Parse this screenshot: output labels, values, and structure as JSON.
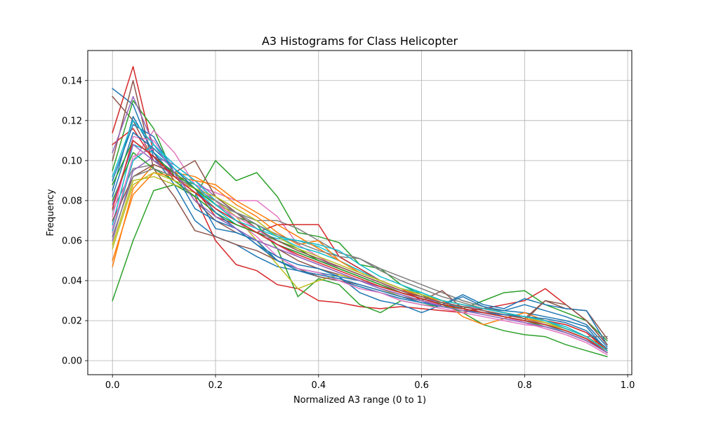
{
  "chart_data": {
    "type": "line",
    "title": "A3 Histograms for Class Helicopter",
    "xlabel": "Normalized A3 range (0 to 1)",
    "ylabel": "Frequency",
    "xlim": [
      -0.048,
      1.008
    ],
    "ylim": [
      -0.007,
      0.155
    ],
    "xticks": [
      0.0,
      0.2,
      0.4,
      0.6,
      0.8,
      1.0
    ],
    "xtick_labels": [
      "0.0",
      "0.2",
      "0.4",
      "0.6",
      "0.8",
      "1.0"
    ],
    "yticks": [
      0.0,
      0.02,
      0.04,
      0.06,
      0.08,
      0.1,
      0.12,
      0.14
    ],
    "ytick_labels": [
      "0.00",
      "0.02",
      "0.04",
      "0.06",
      "0.08",
      "0.10",
      "0.12",
      "0.14"
    ],
    "grid": true,
    "x": [
      0.0,
      0.04,
      0.08,
      0.12,
      0.16,
      0.2,
      0.24,
      0.28,
      0.32,
      0.36,
      0.4,
      0.44,
      0.48,
      0.52,
      0.56,
      0.6,
      0.64,
      0.68,
      0.72,
      0.76,
      0.8,
      0.84,
      0.88,
      0.92,
      0.96
    ],
    "series": [
      {
        "color": "#1f77b4",
        "values": [
          0.136,
          0.128,
          0.102,
          0.088,
          0.07,
          0.062,
          0.058,
          0.052,
          0.047,
          0.045,
          0.042,
          0.04,
          0.037,
          0.034,
          0.031,
          0.029,
          0.028,
          0.027,
          0.026,
          0.025,
          0.024,
          0.022,
          0.02,
          0.017,
          0.005
        ]
      },
      {
        "color": "#d62728",
        "values": [
          0.114,
          0.147,
          0.104,
          0.09,
          0.082,
          0.06,
          0.048,
          0.045,
          0.038,
          0.036,
          0.03,
          0.029,
          0.027,
          0.026,
          0.027,
          0.026,
          0.025,
          0.024,
          0.026,
          0.028,
          0.03,
          0.036,
          0.028,
          0.02,
          0.008
        ]
      },
      {
        "color": "#8c564b",
        "values": [
          0.132,
          0.12,
          0.1,
          0.094,
          0.08,
          0.07,
          0.064,
          0.06,
          0.056,
          0.05,
          0.046,
          0.043,
          0.04,
          0.037,
          0.034,
          0.032,
          0.03,
          0.028,
          0.026,
          0.024,
          0.022,
          0.02,
          0.018,
          0.014,
          0.006
        ]
      },
      {
        "color": "#2ca02c",
        "values": [
          0.03,
          0.06,
          0.085,
          0.088,
          0.082,
          0.1,
          0.09,
          0.094,
          0.082,
          0.064,
          0.062,
          0.059,
          0.048,
          0.046,
          0.038,
          0.033,
          0.028,
          0.024,
          0.018,
          0.015,
          0.013,
          0.012,
          0.008,
          0.005,
          0.002
        ]
      },
      {
        "color": "#2ca02c",
        "values": [
          0.095,
          0.13,
          0.116,
          0.092,
          0.088,
          0.078,
          0.072,
          0.068,
          0.056,
          0.032,
          0.041,
          0.038,
          0.028,
          0.024,
          0.03,
          0.028,
          0.027,
          0.026,
          0.03,
          0.034,
          0.035,
          0.028,
          0.024,
          0.02,
          0.01
        ]
      },
      {
        "color": "#e377c2",
        "values": [
          0.064,
          0.1,
          0.115,
          0.104,
          0.088,
          0.084,
          0.08,
          0.08,
          0.072,
          0.058,
          0.052,
          0.046,
          0.042,
          0.038,
          0.035,
          0.032,
          0.03,
          0.028,
          0.025,
          0.022,
          0.019,
          0.017,
          0.014,
          0.01,
          0.004
        ]
      },
      {
        "color": "#7f7f7f",
        "values": [
          0.075,
          0.096,
          0.098,
          0.094,
          0.086,
          0.078,
          0.074,
          0.07,
          0.07,
          0.066,
          0.06,
          0.054,
          0.051,
          0.046,
          0.042,
          0.038,
          0.034,
          0.03,
          0.027,
          0.024,
          0.021,
          0.018,
          0.015,
          0.011,
          0.005
        ]
      },
      {
        "color": "#bcbd22",
        "values": [
          0.058,
          0.09,
          0.092,
          0.088,
          0.084,
          0.08,
          0.072,
          0.06,
          0.048,
          0.036,
          0.04,
          0.043,
          0.04,
          0.036,
          0.032,
          0.03,
          0.028,
          0.026,
          0.024,
          0.022,
          0.02,
          0.018,
          0.016,
          0.012,
          0.005
        ]
      },
      {
        "color": "#17becf",
        "values": [
          0.068,
          0.108,
          0.104,
          0.096,
          0.086,
          0.076,
          0.068,
          0.064,
          0.061,
          0.06,
          0.057,
          0.052,
          0.046,
          0.04,
          0.036,
          0.034,
          0.03,
          0.026,
          0.024,
          0.022,
          0.02,
          0.018,
          0.014,
          0.01,
          0.004
        ]
      },
      {
        "color": "#ff7f0e",
        "values": [
          0.047,
          0.086,
          0.098,
          0.094,
          0.092,
          0.086,
          0.078,
          0.072,
          0.064,
          0.058,
          0.06,
          0.05,
          0.044,
          0.04,
          0.036,
          0.032,
          0.03,
          0.022,
          0.018,
          0.021,
          0.024,
          0.02,
          0.016,
          0.012,
          0.006
        ]
      },
      {
        "color": "#9467bd",
        "values": [
          0.06,
          0.095,
          0.102,
          0.098,
          0.09,
          0.082,
          0.074,
          0.066,
          0.058,
          0.052,
          0.048,
          0.044,
          0.04,
          0.037,
          0.034,
          0.031,
          0.029,
          0.027,
          0.025,
          0.023,
          0.021,
          0.019,
          0.016,
          0.012,
          0.005
        ]
      },
      {
        "color": "#8c564b",
        "values": [
          0.1,
          0.14,
          0.096,
          0.082,
          0.065,
          0.062,
          0.058,
          0.055,
          0.05,
          0.046,
          0.042,
          0.04,
          0.038,
          0.035,
          0.032,
          0.03,
          0.035,
          0.026,
          0.024,
          0.022,
          0.02,
          0.03,
          0.026,
          0.025,
          0.011
        ]
      },
      {
        "color": "#1f77b4",
        "values": [
          0.085,
          0.122,
          0.104,
          0.092,
          0.084,
          0.066,
          0.064,
          0.06,
          0.05,
          0.046,
          0.044,
          0.042,
          0.034,
          0.03,
          0.028,
          0.024,
          0.028,
          0.033,
          0.028,
          0.026,
          0.031,
          0.028,
          0.026,
          0.025,
          0.008
        ]
      },
      {
        "color": "#e377c2",
        "values": [
          0.072,
          0.112,
          0.11,
          0.096,
          0.088,
          0.08,
          0.07,
          0.062,
          0.052,
          0.046,
          0.044,
          0.04,
          0.036,
          0.034,
          0.03,
          0.028,
          0.026,
          0.024,
          0.022,
          0.02,
          0.018,
          0.017,
          0.014,
          0.01,
          0.004
        ]
      },
      {
        "color": "#d62728",
        "values": [
          0.108,
          0.116,
          0.1,
          0.092,
          0.086,
          0.072,
          0.068,
          0.064,
          0.068,
          0.068,
          0.068,
          0.052,
          0.046,
          0.04,
          0.036,
          0.03,
          0.027,
          0.025,
          0.026,
          0.024,
          0.022,
          0.02,
          0.018,
          0.014,
          0.005
        ]
      },
      {
        "color": "#2ca02c",
        "values": [
          0.08,
          0.104,
          0.096,
          0.09,
          0.082,
          0.074,
          0.068,
          0.064,
          0.06,
          0.056,
          0.05,
          0.046,
          0.042,
          0.038,
          0.034,
          0.031,
          0.028,
          0.026,
          0.024,
          0.022,
          0.02,
          0.017,
          0.014,
          0.01,
          0.004
        ]
      },
      {
        "color": "#1f77b4",
        "values": [
          0.09,
          0.118,
          0.112,
          0.094,
          0.076,
          0.07,
          0.066,
          0.058,
          0.052,
          0.048,
          0.046,
          0.042,
          0.04,
          0.036,
          0.033,
          0.03,
          0.028,
          0.032,
          0.027,
          0.025,
          0.028,
          0.025,
          0.022,
          0.018,
          0.007
        ]
      },
      {
        "color": "#17becf",
        "values": [
          0.065,
          0.1,
          0.108,
          0.098,
          0.09,
          0.08,
          0.074,
          0.068,
          0.062,
          0.057,
          0.054,
          0.05,
          0.045,
          0.04,
          0.036,
          0.033,
          0.03,
          0.028,
          0.026,
          0.024,
          0.022,
          0.02,
          0.017,
          0.012,
          0.005
        ]
      },
      {
        "color": "#ff7f0e",
        "values": [
          0.05,
          0.083,
          0.094,
          0.092,
          0.09,
          0.088,
          0.08,
          0.074,
          0.068,
          0.062,
          0.056,
          0.05,
          0.044,
          0.04,
          0.036,
          0.032,
          0.029,
          0.027,
          0.025,
          0.023,
          0.021,
          0.019,
          0.016,
          0.012,
          0.005
        ]
      },
      {
        "color": "#9467bd",
        "values": [
          0.078,
          0.108,
          0.1,
          0.092,
          0.084,
          0.076,
          0.07,
          0.064,
          0.058,
          0.054,
          0.05,
          0.047,
          0.043,
          0.039,
          0.035,
          0.032,
          0.029,
          0.027,
          0.025,
          0.022,
          0.02,
          0.018,
          0.015,
          0.011,
          0.004
        ]
      },
      {
        "color": "#8c564b",
        "values": [
          0.07,
          0.092,
          0.098,
          0.094,
          0.1,
          0.082,
          0.074,
          0.066,
          0.06,
          0.055,
          0.051,
          0.047,
          0.043,
          0.039,
          0.035,
          0.032,
          0.029,
          0.027,
          0.025,
          0.023,
          0.021,
          0.03,
          0.028,
          0.02,
          0.008
        ]
      },
      {
        "color": "#7f7f7f",
        "values": [
          0.062,
          0.092,
          0.096,
          0.092,
          0.086,
          0.08,
          0.074,
          0.068,
          0.063,
          0.059,
          0.055,
          0.052,
          0.051,
          0.045,
          0.04,
          0.036,
          0.032,
          0.029,
          0.026,
          0.024,
          0.022,
          0.019,
          0.016,
          0.012,
          0.012
        ]
      },
      {
        "color": "#bcbd22",
        "values": [
          0.056,
          0.088,
          0.094,
          0.09,
          0.086,
          0.082,
          0.076,
          0.07,
          0.062,
          0.056,
          0.052,
          0.048,
          0.044,
          0.04,
          0.036,
          0.033,
          0.03,
          0.028,
          0.026,
          0.024,
          0.022,
          0.019,
          0.016,
          0.012,
          0.005
        ]
      },
      {
        "color": "#e377c2",
        "values": [
          0.066,
          0.102,
          0.106,
          0.096,
          0.088,
          0.078,
          0.072,
          0.066,
          0.058,
          0.052,
          0.048,
          0.044,
          0.04,
          0.036,
          0.033,
          0.03,
          0.028,
          0.026,
          0.024,
          0.022,
          0.019,
          0.016,
          0.013,
          0.009,
          0.003
        ]
      },
      {
        "color": "#1f77b4",
        "values": [
          0.082,
          0.114,
          0.106,
          0.096,
          0.086,
          0.074,
          0.066,
          0.058,
          0.05,
          0.045,
          0.043,
          0.041,
          0.038,
          0.035,
          0.032,
          0.029,
          0.027,
          0.025,
          0.024,
          0.023,
          0.022,
          0.021,
          0.019,
          0.015,
          0.006
        ]
      },
      {
        "color": "#2ca02c",
        "values": [
          0.088,
          0.11,
          0.102,
          0.094,
          0.086,
          0.078,
          0.07,
          0.064,
          0.058,
          0.054,
          0.05,
          0.046,
          0.042,
          0.038,
          0.034,
          0.031,
          0.028,
          0.026,
          0.024,
          0.022,
          0.02,
          0.018,
          0.015,
          0.011,
          0.004
        ]
      },
      {
        "color": "#d62728",
        "values": [
          0.076,
          0.11,
          0.102,
          0.092,
          0.084,
          0.076,
          0.07,
          0.064,
          0.058,
          0.053,
          0.049,
          0.045,
          0.041,
          0.037,
          0.034,
          0.031,
          0.028,
          0.026,
          0.024,
          0.022,
          0.02,
          0.018,
          0.015,
          0.011,
          0.004
        ]
      },
      {
        "color": "#9467bd",
        "values": [
          0.104,
          0.132,
          0.108,
          0.094,
          0.08,
          0.072,
          0.066,
          0.06,
          0.056,
          0.052,
          0.048,
          0.044,
          0.04,
          0.036,
          0.033,
          0.03,
          0.027,
          0.025,
          0.023,
          0.021,
          0.019,
          0.017,
          0.014,
          0.01,
          0.004
        ]
      },
      {
        "color": "#17becf",
        "values": [
          0.092,
          0.12,
          0.108,
          0.096,
          0.088,
          0.078,
          0.07,
          0.066,
          0.062,
          0.06,
          0.058,
          0.055,
          0.048,
          0.042,
          0.038,
          0.034,
          0.03,
          0.028,
          0.026,
          0.024,
          0.022,
          0.02,
          0.016,
          0.012,
          0.005
        ]
      }
    ]
  }
}
